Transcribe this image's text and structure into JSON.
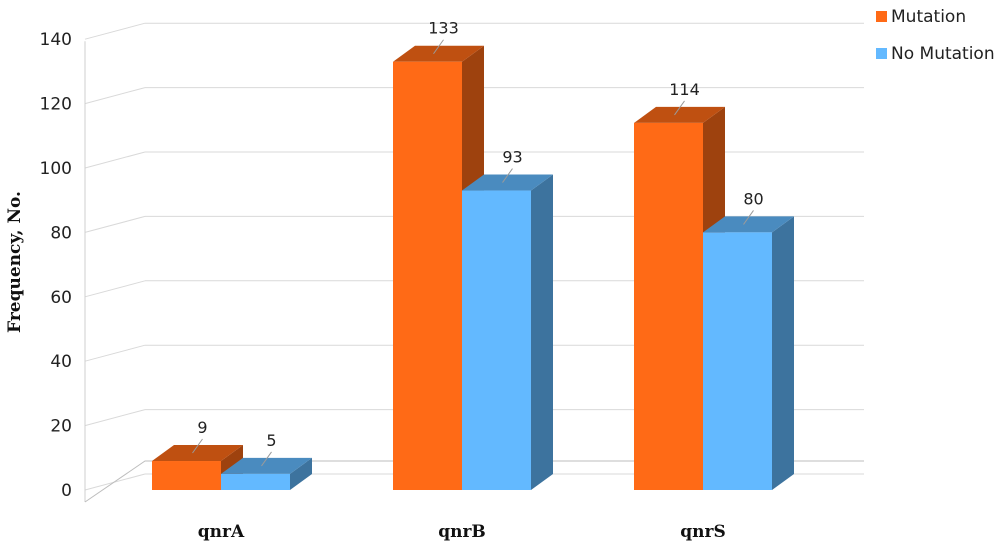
{
  "chart_data": {
    "type": "bar",
    "categories": [
      "qnrA",
      "qnrB",
      "qnrS"
    ],
    "series": [
      {
        "name": "Mutation",
        "values": [
          9,
          133,
          114
        ],
        "color": "#ff6a16"
      },
      {
        "name": "No Mutation",
        "values": [
          5,
          93,
          80
        ],
        "color": "#63b9ff"
      }
    ],
    "ylabel": "Frequency, No.",
    "xlabel": "",
    "ylim": [
      0,
      140
    ],
    "yticks": [
      "0",
      "20",
      "40",
      "60",
      "80",
      "100",
      "120",
      "140"
    ],
    "grid": true,
    "legend_position": "top-right",
    "style": "3d-column"
  }
}
